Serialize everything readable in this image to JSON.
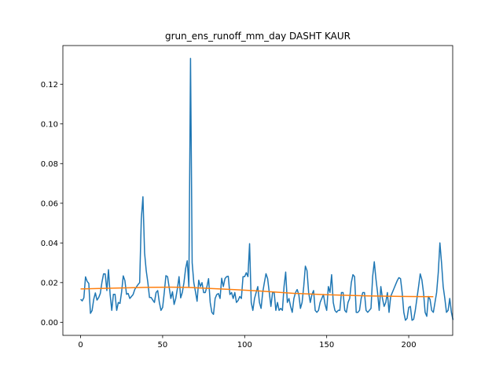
{
  "chart_data": {
    "type": "line",
    "title": "grun_ens_runoff_mm_day DASHT KAUR",
    "xlabel": "",
    "ylabel": "",
    "xlim": [
      -10.8,
      226.8
    ],
    "ylim": [
      -0.0066,
      0.1395
    ],
    "x_ticks": [
      0,
      50,
      100,
      150,
      200
    ],
    "x_tick_labels": [
      "0",
      "50",
      "100",
      "150",
      "200"
    ],
    "y_ticks": [
      0.0,
      0.02,
      0.04,
      0.06,
      0.08,
      0.1,
      0.12
    ],
    "y_tick_labels": [
      "0.00",
      "0.02",
      "0.04",
      "0.06",
      "0.08",
      "0.10",
      "0.12"
    ],
    "grid": false,
    "colors": {
      "series_1": "#1f77b4",
      "series_2": "#ff7f0e"
    },
    "series": [
      {
        "values": [
          0.0116,
          0.0108,
          0.0124,
          0.0229,
          0.0206,
          0.0196,
          0.0045,
          0.0059,
          0.0116,
          0.0148,
          0.0112,
          0.0124,
          0.0145,
          0.0201,
          0.0244,
          0.0244,
          0.016,
          0.0265,
          0.014,
          0.006,
          0.0141,
          0.0141,
          0.006,
          0.01,
          0.0095,
          0.0153,
          0.0234,
          0.021,
          0.0141,
          0.0145,
          0.012,
          0.013,
          0.014,
          0.0165,
          0.0178,
          0.019,
          0.02,
          0.052,
          0.0633,
          0.035,
          0.026,
          0.02,
          0.0125,
          0.0125,
          0.0112,
          0.01,
          0.015,
          0.016,
          0.01,
          0.006,
          0.0075,
          0.015,
          0.0235,
          0.023,
          0.0175,
          0.012,
          0.0154,
          0.009,
          0.012,
          0.017,
          0.023,
          0.0123,
          0.015,
          0.02,
          0.027,
          0.031,
          0.018,
          0.133,
          0.03,
          0.02,
          0.0155,
          0.0106,
          0.0212,
          0.018,
          0.02,
          0.015,
          0.015,
          0.018,
          0.022,
          0.01,
          0.005,
          0.004,
          0.012,
          0.014,
          0.0145,
          0.012,
          0.0222,
          0.018,
          0.022,
          0.023,
          0.0232,
          0.014,
          0.015,
          0.012,
          0.015,
          0.01,
          0.011,
          0.013,
          0.012,
          0.023,
          0.023,
          0.025,
          0.023,
          0.0396,
          0.01,
          0.006,
          0.012,
          0.015,
          0.018,
          0.01,
          0.007,
          0.015,
          0.02,
          0.0245,
          0.022,
          0.015,
          0.008,
          0.015,
          0.015,
          0.006,
          0.01,
          0.006,
          0.007,
          0.006,
          0.018,
          0.0253,
          0.01,
          0.012,
          0.008,
          0.005,
          0.012,
          0.015,
          0.0165,
          0.014,
          0.007,
          0.01,
          0.018,
          0.0283,
          0.026,
          0.015,
          0.01,
          0.014,
          0.016,
          0.006,
          0.005,
          0.006,
          0.01,
          0.012,
          0.014,
          0.009,
          0.006,
          0.018,
          0.015,
          0.024,
          0.01,
          0.006,
          0.005,
          0.006,
          0.006,
          0.015,
          0.015,
          0.006,
          0.005,
          0.01,
          0.012,
          0.02,
          0.024,
          0.023,
          0.005,
          0.005,
          0.006,
          0.012,
          0.015,
          0.015,
          0.006,
          0.005,
          0.006,
          0.007,
          0.023,
          0.0305,
          0.022,
          0.015,
          0.006,
          0.018,
          0.012,
          0.008,
          0.01,
          0.015,
          0.005,
          0.013,
          0.015,
          0.017,
          0.019,
          0.021,
          0.0225,
          0.022,
          0.015,
          0.005,
          0.001,
          0.002,
          0.0075,
          0.008,
          0.001,
          0.0015,
          0.006,
          0.012,
          0.018,
          0.0244,
          0.0215,
          0.015,
          0.005,
          0.003,
          0.013,
          0.0115,
          0.006,
          0.005,
          0.01,
          0.015,
          0.025,
          0.04,
          0.03,
          0.018,
          0.012,
          0.005,
          0.006,
          0.012,
          0.005,
          0.0012
        ]
      },
      {
        "values_at_x": [
          [
            0,
            0.0168
          ],
          [
            20,
            0.0172
          ],
          [
            40,
            0.0176
          ],
          [
            55,
            0.0177
          ],
          [
            65,
            0.0176
          ],
          [
            80,
            0.017
          ],
          [
            95,
            0.0164
          ],
          [
            110,
            0.0157
          ],
          [
            130,
            0.0146
          ],
          [
            150,
            0.0139
          ],
          [
            175,
            0.0133
          ],
          [
            200,
            0.013
          ],
          [
            215,
            0.0129
          ]
        ]
      }
    ]
  }
}
